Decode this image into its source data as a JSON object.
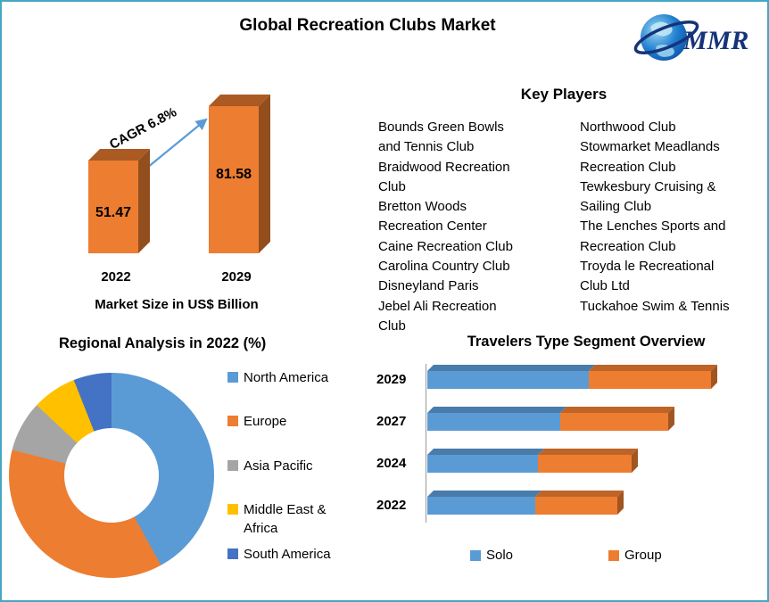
{
  "page": {
    "title": "Global Recreation Clubs Market",
    "logo_text": "MMR"
  },
  "market_chart": {
    "axis_title": "Market Size in US$ Billion",
    "cagr_label": "CAGR 6.8%"
  },
  "key_players": {
    "heading": "Key Players",
    "column1": [
      "Bounds Green Bowls and Tennis Club",
      "Braidwood Recreation Club",
      "Bretton Woods Recreation Center",
      "Caine Recreation Club",
      "Carolina Country Club",
      "Disneyland Paris",
      "Jebel Ali Recreation Club"
    ],
    "column2": [
      "Northwood Club",
      "Stowmarket Meadlands Recreation Club",
      "Tewkesbury Cruising & Sailing Club",
      "The Lenches Sports and Recreation Club",
      "Troyda le Recreational Club Ltd",
      "Tuckahoe Swim & Tennis"
    ]
  },
  "regional": {
    "heading": "Regional Analysis in 2022 (%)"
  },
  "travelers": {
    "heading": "Travelers Type Segment Overview"
  },
  "chart_data": [
    {
      "type": "bar",
      "title": "Market Size in US$ Billion",
      "categories": [
        "2022",
        "2029"
      ],
      "values": [
        51.47,
        81.58
      ],
      "annotation": "CAGR 6.8%",
      "color": "#ED7D31",
      "ylabel": "US$ Billion"
    },
    {
      "type": "pie",
      "donut": true,
      "title": "Regional Analysis in 2022 (%)",
      "labels": [
        "North America",
        "Europe",
        "Asia Pacific",
        "Middle East & Africa",
        "South America"
      ],
      "values": [
        42,
        37,
        8,
        7,
        6
      ],
      "colors": [
        "#5B9BD5",
        "#ED7D31",
        "#A5A5A5",
        "#FFC000",
        "#4472C4"
      ],
      "unit": "%",
      "legend_position": "right"
    },
    {
      "type": "bar",
      "orientation": "horizontal",
      "stacked": true,
      "title": "Travelers Type Segment Overview",
      "categories": [
        "2029",
        "2027",
        "2024",
        "2022"
      ],
      "series": [
        {
          "name": "Solo",
          "color": "#5B9BD5",
          "values": [
            57,
            47,
            39,
            38
          ]
        },
        {
          "name": "Group",
          "color": "#ED7D31",
          "values": [
            43,
            38,
            33,
            29
          ]
        }
      ],
      "legend_position": "bottom"
    }
  ]
}
